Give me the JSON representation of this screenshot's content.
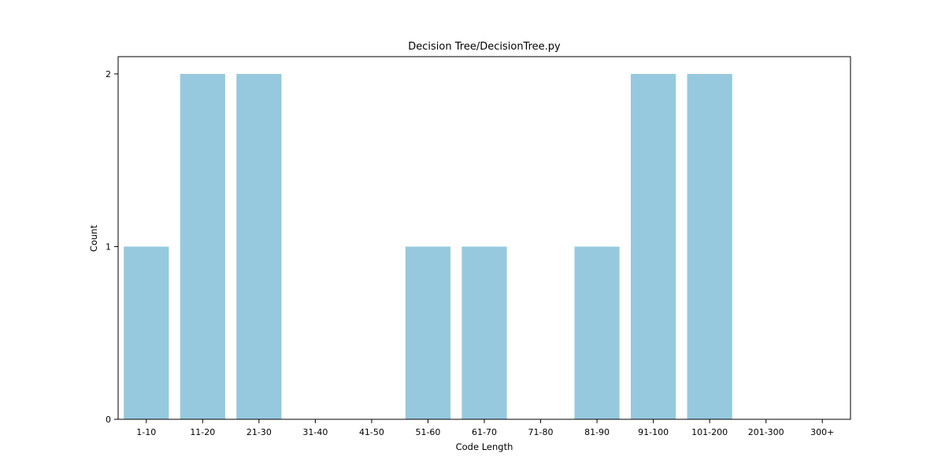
{
  "chart_data": {
    "type": "bar",
    "title": "Decision Tree/DecisionTree.py",
    "xlabel": "Code Length",
    "ylabel": "Count",
    "categories": [
      "1-10",
      "11-20",
      "21-30",
      "31-40",
      "41-50",
      "51-60",
      "61-70",
      "71-80",
      "81-90",
      "91-100",
      "101-200",
      "201-300",
      "300+"
    ],
    "values": [
      1,
      2,
      2,
      0,
      0,
      1,
      1,
      0,
      1,
      2,
      2,
      0,
      0
    ],
    "yticks": [
      0,
      1,
      2
    ],
    "ylim": [
      0,
      2.1
    ],
    "grid": false,
    "bar_color": "#96c9de"
  }
}
